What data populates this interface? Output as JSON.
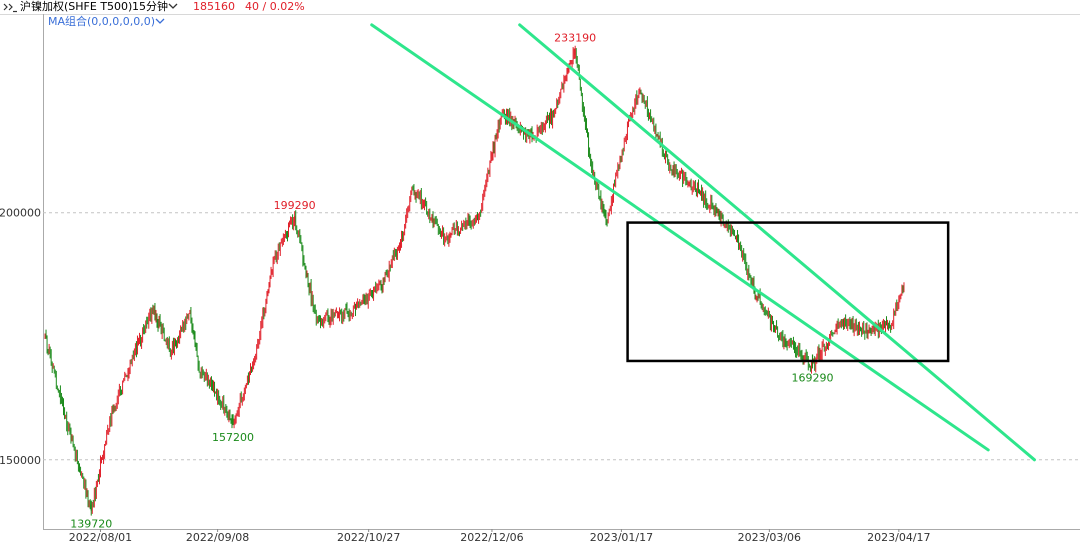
{
  "header": {
    "icon_name": "collapse-arrows-icon",
    "symbol_name": "沪镍加权(SHFE T500)",
    "period": "15分钟",
    "period_icon_name": "chevron-down-icon",
    "last_price": "185160",
    "change": "40 / 0.02%",
    "price_color": "#e0202a"
  },
  "indicator": {
    "label": "MA组合(0,0,0,0,0,0)",
    "icon_name": "chevron-down-icon",
    "color": "#3a6fd8"
  },
  "chart_data": {
    "type": "candlestick",
    "title": "",
    "x_ticks": [
      "2022/08/01",
      "2022/09/08",
      "2022/10/27",
      "2022/12/06",
      "2023/01/17",
      "2023/03/06",
      "2023/04/17"
    ],
    "y_ticks": [
      150000,
      200000
    ],
    "ylim": [
      136000,
      240000
    ],
    "gridlines": "dashed horizontal at y ticks",
    "up_color": "#e0202a",
    "down_color": "#1a8a1a",
    "channel_color": "#2ee68c",
    "series_waypoints": [
      {
        "date": "2022/07/14",
        "value": 175000
      },
      {
        "date": "2022/07/20",
        "value": 160000
      },
      {
        "date": "2022/07/29",
        "value": 139720
      },
      {
        "date": "2022/08/04",
        "value": 158000
      },
      {
        "date": "2022/08/12",
        "value": 172000
      },
      {
        "date": "2022/08/18",
        "value": 180000
      },
      {
        "date": "2022/08/24",
        "value": 172000
      },
      {
        "date": "2022/08/30",
        "value": 180000
      },
      {
        "date": "2022/09/02",
        "value": 168000
      },
      {
        "date": "2022/09/06",
        "value": 165000
      },
      {
        "date": "2022/09/13",
        "value": 157200
      },
      {
        "date": "2022/09/20",
        "value": 170000
      },
      {
        "date": "2022/09/26",
        "value": 190000
      },
      {
        "date": "2022/10/03",
        "value": 199290
      },
      {
        "date": "2022/10/10",
        "value": 178000
      },
      {
        "date": "2022/10/21",
        "value": 180000
      },
      {
        "date": "2022/10/31",
        "value": 185000
      },
      {
        "date": "2022/11/07",
        "value": 195000
      },
      {
        "date": "2022/11/10",
        "value": 205000
      },
      {
        "date": "2022/11/21",
        "value": 195000
      },
      {
        "date": "2022/12/02",
        "value": 200000
      },
      {
        "date": "2022/12/09",
        "value": 220000
      },
      {
        "date": "2022/12/19",
        "value": 215000
      },
      {
        "date": "2022/12/26",
        "value": 220000
      },
      {
        "date": "2023/01/02",
        "value": 233190
      },
      {
        "date": "2023/01/07",
        "value": 210000
      },
      {
        "date": "2023/01/12",
        "value": 198000
      },
      {
        "date": "2023/01/20",
        "value": 220000
      },
      {
        "date": "2023/01/23",
        "value": 225000
      },
      {
        "date": "2023/02/01",
        "value": 210000
      },
      {
        "date": "2023/02/10",
        "value": 205000
      },
      {
        "date": "2023/02/17",
        "value": 200000
      },
      {
        "date": "2023/02/23",
        "value": 195000
      },
      {
        "date": "2023/03/02",
        "value": 183000
      },
      {
        "date": "2023/03/09",
        "value": 175000
      },
      {
        "date": "2023/03/20",
        "value": 169290
      },
      {
        "date": "2023/03/29",
        "value": 178000
      },
      {
        "date": "2023/04/07",
        "value": 176000
      },
      {
        "date": "2023/04/14",
        "value": 177000
      },
      {
        "date": "2023/04/19",
        "value": 185160
      }
    ],
    "annotations": [
      {
        "text": "139720",
        "date": "2022/07/29",
        "value": 139720,
        "color": "#1a8a1a",
        "pos": "below"
      },
      {
        "text": "157200",
        "date": "2022/09/13",
        "value": 157200,
        "color": "#1a8a1a",
        "pos": "below"
      },
      {
        "text": "199290",
        "date": "2022/10/03",
        "value": 199290,
        "color": "#e0202a",
        "pos": "above"
      },
      {
        "text": "233190",
        "date": "2023/01/02",
        "value": 233190,
        "color": "#e0202a",
        "pos": "above"
      },
      {
        "text": "169290",
        "date": "2023/03/20",
        "value": 169290,
        "color": "#1a8a1a",
        "pos": "below"
      }
    ],
    "channel_lines": [
      {
        "start": {
          "date": "2022/10/28",
          "value": 238000
        },
        "end": {
          "date": "2023/05/16",
          "value": 152000
        }
      },
      {
        "start": {
          "date": "2022/12/15",
          "value": 238000
        },
        "end": {
          "date": "2023/05/31",
          "value": 150000
        }
      }
    ],
    "highlight_box": {
      "start": "2023/01/19",
      "end": "2023/05/03",
      "low": 170000,
      "high": 198000
    }
  }
}
